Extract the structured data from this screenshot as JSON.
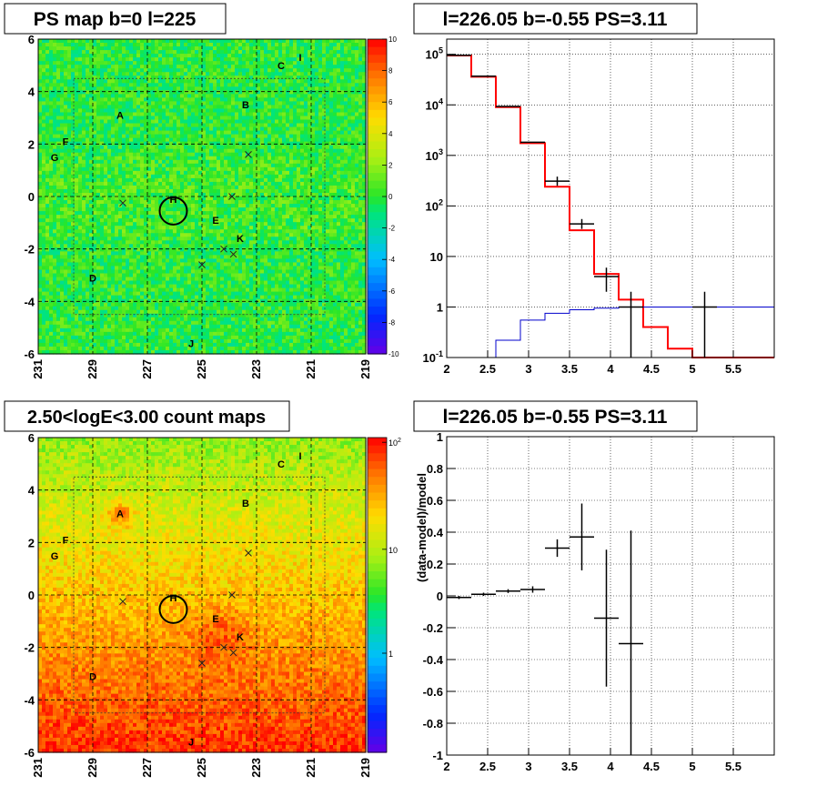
{
  "panels": {
    "tl_title": "PS map b=0 l=225",
    "tr_title": "l=226.05 b=-0.55 PS=3.11",
    "bl_title": "2.50<logE<3.00 count maps",
    "br_title": "l=226.05 b=-0.55 PS=3.11"
  },
  "colors": {
    "red_model": "#ff0000",
    "blue_model": "#0000cc",
    "data": "#000000"
  },
  "chart_data": [
    {
      "type": "heatmap",
      "title": "PS map b=0 l=225",
      "x_ticks": [
        "231",
        "229",
        "227",
        "225",
        "223",
        "221",
        "219"
      ],
      "y_ticks": [
        "6",
        "4",
        "2",
        "0",
        "-2",
        "-4",
        "-6"
      ],
      "xlim": [
        231,
        219
      ],
      "ylim": [
        -6,
        6
      ],
      "colorbar": {
        "min": -10,
        "max": 10,
        "ticks": [
          "10",
          "8",
          "6",
          "4",
          "2",
          "0",
          "-2",
          "-4",
          "-6",
          "-8",
          "-10"
        ]
      },
      "sources": [
        {
          "label": "A",
          "l": 228.0,
          "b": 3.1
        },
        {
          "label": "B",
          "l": 223.4,
          "b": 3.5
        },
        {
          "label": "C",
          "l": 222.1,
          "b": 5.0
        },
        {
          "label": "I",
          "l": 221.4,
          "b": 5.3
        },
        {
          "label": "F",
          "l": 230.0,
          "b": 2.1
        },
        {
          "label": "G",
          "l": 230.4,
          "b": 1.5
        },
        {
          "label": "H",
          "l": 226.05,
          "b": -0.1
        },
        {
          "label": "E",
          "l": 224.5,
          "b": -0.9
        },
        {
          "label": "K",
          "l": 223.6,
          "b": -1.6
        },
        {
          "label": "D",
          "l": 229.0,
          "b": -3.1
        },
        {
          "label": "J",
          "l": 225.4,
          "b": -5.6
        }
      ],
      "crosses": [
        {
          "l": 227.9,
          "b": -0.25
        },
        {
          "l": 223.3,
          "b": 1.6
        },
        {
          "l": 223.9,
          "b": 0.0
        },
        {
          "l": 224.2,
          "b": -2.0
        },
        {
          "l": 223.85,
          "b": -2.2
        },
        {
          "l": 225.0,
          "b": -2.6
        }
      ],
      "circle": {
        "l": 226.05,
        "b": -0.55,
        "radius_deg": 0.5
      }
    },
    {
      "type": "line",
      "title": "l=226.05 b=-0.55 PS=3.11",
      "yscale": "log",
      "xlim": [
        2,
        6
      ],
      "ylim": [
        0.1,
        200000
      ],
      "x_ticks": [
        "2",
        "2.5",
        "3",
        "3.5",
        "4",
        "4.5",
        "5",
        "5.5"
      ],
      "y_ticks": [
        "10^5",
        "10^4",
        "10^3",
        "10^2",
        "10",
        "1",
        "10^-1"
      ],
      "bin_edges": [
        2.0,
        2.3,
        2.6,
        2.9,
        3.2,
        3.5,
        3.8,
        4.1,
        4.4,
        4.7,
        5.0,
        6.0
      ],
      "series": [
        {
          "values": [
            95000,
            36000,
            9000,
            1750,
            240,
            33,
            4.5,
            1.4,
            0.4,
            0.15,
            0.1
          ]
        },
        {
          "values": [
            null,
            null,
            0.22,
            0.55,
            0.75,
            0.88,
            0.95,
            1.0,
            1.0,
            1.0,
            1.0
          ]
        }
      ],
      "data_points": [
        {
          "x": 2.15,
          "y": 96000,
          "xerr": 0.15
        },
        {
          "x": 2.45,
          "y": 37000,
          "xerr": 0.15
        },
        {
          "x": 2.75,
          "y": 9300,
          "xerr": 0.15
        },
        {
          "x": 3.05,
          "y": 1820,
          "xerr": 0.15
        },
        {
          "x": 3.35,
          "y": 310,
          "xerr": 0.15,
          "ylo": 250,
          "yhi": 380
        },
        {
          "x": 3.65,
          "y": 44,
          "xerr": 0.15,
          "ylo": 35,
          "yhi": 55
        },
        {
          "x": 3.95,
          "y": 4.0,
          "xerr": 0.15,
          "ylo": 2.0,
          "yhi": 6.0
        },
        {
          "x": 4.25,
          "y": 1.0,
          "xerr": 0.15,
          "ylo": 0.1,
          "yhi": 2.0
        },
        {
          "x": 5.15,
          "y": 1.0,
          "xerr": 0.15,
          "ylo": 0.1,
          "yhi": 2.0
        }
      ]
    },
    {
      "type": "heatmap",
      "title": "2.50<logE<3.00 count maps",
      "x_ticks": [
        "231",
        "229",
        "227",
        "225",
        "223",
        "221",
        "219"
      ],
      "y_ticks": [
        "6",
        "4",
        "2",
        "0",
        "-2",
        "-4",
        "-6"
      ],
      "xlim": [
        231,
        219
      ],
      "ylim": [
        -6,
        6
      ],
      "colorbar": {
        "scale": "log",
        "ticks": [
          "10^2",
          "10",
          "1"
        ]
      }
    },
    {
      "type": "scatter",
      "title": "l=226.05 b=-0.55 PS=3.11",
      "ylabel": "(data-model)/model",
      "xlim": [
        2,
        6
      ],
      "ylim": [
        -1,
        1
      ],
      "x_ticks": [
        "2",
        "2.5",
        "3",
        "3.5",
        "4",
        "4.5",
        "5",
        "5.5"
      ],
      "y_ticks": [
        "1",
        "0.8",
        "0.6",
        "0.4",
        "0.2",
        "0",
        "-0.2",
        "-0.4",
        "-0.6",
        "-0.8",
        "-1"
      ],
      "points": [
        {
          "x": 2.15,
          "y": -0.01,
          "xerr": 0.15,
          "yerr": 0.01
        },
        {
          "x": 2.45,
          "y": 0.01,
          "xerr": 0.15,
          "yerr": 0.01
        },
        {
          "x": 2.75,
          "y": 0.03,
          "xerr": 0.15,
          "yerr": 0.012
        },
        {
          "x": 3.05,
          "y": 0.04,
          "xerr": 0.15,
          "yerr": 0.02
        },
        {
          "x": 3.35,
          "y": 0.3,
          "xerr": 0.15,
          "yerr": 0.055
        },
        {
          "x": 3.65,
          "y": 0.37,
          "xerr": 0.15,
          "yerr": 0.21
        },
        {
          "x": 3.95,
          "y": -0.14,
          "xerr": 0.15,
          "yerr": 0.43
        },
        {
          "x": 4.25,
          "y": -0.3,
          "xerr": 0.15,
          "ylo": -1.0,
          "yhi": 0.41
        }
      ]
    }
  ]
}
